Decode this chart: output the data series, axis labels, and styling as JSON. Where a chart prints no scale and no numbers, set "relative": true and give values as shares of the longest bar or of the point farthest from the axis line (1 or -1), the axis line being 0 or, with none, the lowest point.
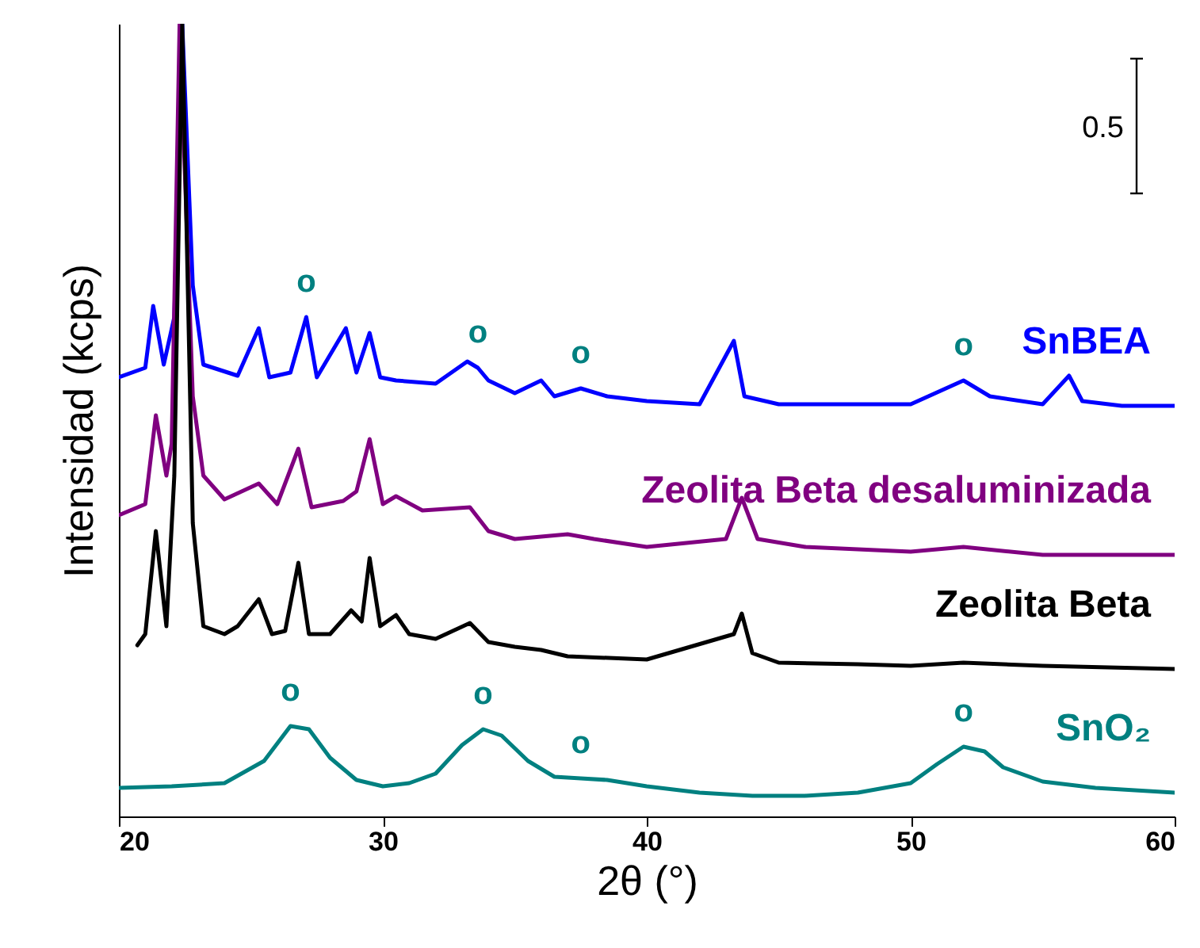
{
  "chart_data": {
    "type": "line",
    "xlabel": "2θ (°)",
    "ylabel": "Intensidad (kcps)",
    "relative": true,
    "xlim": [
      20,
      60
    ],
    "xticks": [
      20,
      30,
      40,
      50,
      60
    ],
    "grid": false,
    "marker": "none",
    "line_style": "solid",
    "series": [
      {
        "name": "SnBEA",
        "color": "#0000ff",
        "x": [
          20,
          21,
          21.3,
          21.7,
          22.1,
          22.4,
          22.8,
          23.2,
          24.5,
          25.3,
          25.7,
          26.5,
          27.1,
          27.5,
          28.6,
          29,
          29.5,
          29.9,
          30.5,
          32,
          33.2,
          33.6,
          34,
          35,
          36,
          36.5,
          37.5,
          38.5,
          40,
          42,
          43.3,
          43.7,
          45,
          48,
          50,
          52,
          53,
          55,
          56,
          56.5,
          58,
          60
        ],
        "values": [
          0.554,
          0.566,
          0.644,
          0.57,
          0.63,
          1.0,
          0.67,
          0.57,
          0.556,
          0.616,
          0.554,
          0.56,
          0.63,
          0.554,
          0.616,
          0.56,
          0.61,
          0.554,
          0.55,
          0.546,
          0.574,
          0.566,
          0.55,
          0.534,
          0.55,
          0.53,
          0.54,
          0.53,
          0.524,
          0.52,
          0.6,
          0.53,
          0.52,
          0.52,
          0.52,
          0.55,
          0.53,
          0.52,
          0.556,
          0.524,
          0.518,
          0.518
        ]
      },
      {
        "name": "Zeolita Beta desaluminizada",
        "color": "#800080",
        "x": [
          20,
          21,
          21.4,
          21.8,
          22.0,
          22.3,
          22.8,
          23.2,
          24,
          25.3,
          26,
          26.8,
          27.3,
          28.5,
          29,
          29.5,
          30,
          30.5,
          31.5,
          33.3,
          34,
          35,
          37,
          38,
          40,
          43,
          43.6,
          44.2,
          46,
          50,
          52,
          55,
          60
        ],
        "values": [
          0.38,
          0.394,
          0.506,
          0.43,
          0.47,
          1.0,
          0.53,
          0.43,
          0.4,
          0.42,
          0.394,
          0.464,
          0.39,
          0.398,
          0.41,
          0.476,
          0.394,
          0.404,
          0.386,
          0.39,
          0.36,
          0.35,
          0.356,
          0.35,
          0.34,
          0.35,
          0.402,
          0.35,
          0.34,
          0.334,
          0.34,
          0.33,
          0.33
        ]
      },
      {
        "name": "Zeolita Beta",
        "color": "#000000",
        "x": [
          20.7,
          21,
          21.4,
          21.8,
          22.1,
          22.4,
          22.8,
          23.2,
          24,
          24.5,
          25.3,
          25.8,
          26.3,
          26.8,
          27.2,
          28,
          28.8,
          29.2,
          29.5,
          29.9,
          30.5,
          31,
          32,
          33.3,
          34,
          35,
          36,
          37,
          40,
          43.3,
          43.6,
          44,
          45,
          48,
          50,
          52,
          55,
          60
        ],
        "values": [
          0.216,
          0.23,
          0.36,
          0.24,
          0.43,
          1.0,
          0.37,
          0.24,
          0.23,
          0.24,
          0.274,
          0.23,
          0.234,
          0.32,
          0.23,
          0.23,
          0.26,
          0.246,
          0.326,
          0.24,
          0.254,
          0.23,
          0.224,
          0.244,
          0.22,
          0.214,
          0.21,
          0.202,
          0.198,
          0.23,
          0.256,
          0.206,
          0.194,
          0.192,
          0.19,
          0.194,
          0.19,
          0.186
        ]
      },
      {
        "name": "SnO₂",
        "color": "#008080",
        "x": [
          20,
          22,
          24,
          25.5,
          26.5,
          27.2,
          28,
          29,
          30,
          31,
          32,
          33,
          33.8,
          34.5,
          35.5,
          36.5,
          37.5,
          38.5,
          40,
          42,
          44,
          46,
          48,
          50,
          51,
          52,
          52.8,
          53.5,
          55,
          57,
          60
        ],
        "values": [
          0.036,
          0.038,
          0.042,
          0.07,
          0.114,
          0.11,
          0.074,
          0.046,
          0.038,
          0.042,
          0.054,
          0.09,
          0.11,
          0.102,
          0.07,
          0.05,
          0.048,
          0.046,
          0.038,
          0.03,
          0.026,
          0.026,
          0.03,
          0.042,
          0.066,
          0.088,
          0.082,
          0.062,
          0.044,
          0.036,
          0.03
        ]
      }
    ],
    "annotations": [
      "0.5",
      {
        "text": "o",
        "x": 27.1,
        "y": 0.63
      },
      {
        "text": "o",
        "x": 33.6,
        "y": 0.566
      },
      {
        "text": "o",
        "x": 37.5,
        "y": 0.54
      },
      {
        "text": "o",
        "x": 52,
        "y": 0.55
      },
      {
        "text": "o",
        "x": 26.5,
        "y": 0.114
      },
      {
        "text": "o",
        "x": 33.8,
        "y": 0.11
      },
      {
        "text": "o",
        "x": 37.5,
        "y": 0.048
      },
      {
        "text": "o",
        "x": 52,
        "y": 0.088
      }
    ]
  }
}
